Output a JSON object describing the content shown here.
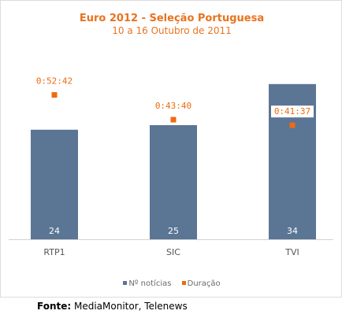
{
  "chart_data": {
    "type": "bar",
    "title": "Euro 2012 - Seleção Portuguesa",
    "subtitle": "10 a 16 Outubro de 2011",
    "categories": [
      "RTP1",
      "SIC",
      "TVI"
    ],
    "series": [
      {
        "name": "Nº notícias",
        "type": "bar",
        "values": [
          24,
          25,
          34
        ],
        "labels": [
          "24",
          "25",
          "34"
        ]
      },
      {
        "name": "Duração",
        "type": "point",
        "values_seconds": [
          3162,
          2620,
          2497
        ],
        "labels": [
          "0:52:42",
          "0:43:40",
          "0:41:37"
        ]
      }
    ],
    "ylim_bars": [
      0,
      40
    ],
    "ylim_points": [
      0,
      4000
    ],
    "legend_placement": "bottom",
    "grid": false
  },
  "colors": {
    "bar": "#5b7594",
    "point": "#f06a0f",
    "title": "#e8731f"
  },
  "legend": {
    "bar_label": "Nº notícias",
    "point_label": "Duração"
  },
  "source": {
    "prefix": "Fonte:",
    "text": " MediaMonitor, Telenews"
  }
}
